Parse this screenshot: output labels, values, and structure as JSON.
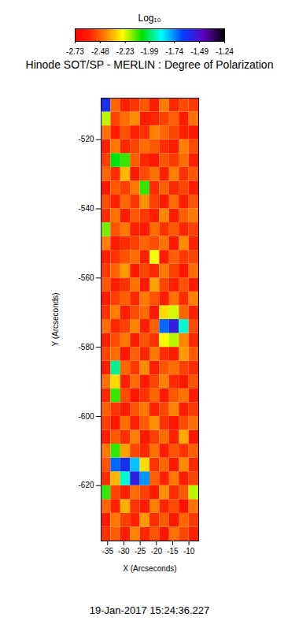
{
  "chart_data": {
    "type": "heatmap",
    "title": "Hinode SOT/SP - MERLIN : Degree of Polarization",
    "xlabel": "X (Arcseconds)",
    "ylabel": "Y (Arcseconds)",
    "caption": "19-Jan-2017 15:24:36.227",
    "xlim": [
      -37,
      -7
    ],
    "ylim": [
      -636,
      -508
    ],
    "xticks": [
      -35,
      -30,
      -25,
      -20,
      -15,
      -10
    ],
    "yticks": [
      -620,
      -600,
      -580,
      -560,
      -540,
      -520
    ],
    "x_edges": [
      -37,
      -34,
      -31,
      -28,
      -25,
      -22,
      -19,
      -16,
      -13,
      -10,
      -7
    ],
    "y_edges": [
      -636,
      -632,
      -628,
      -624,
      -620,
      -616,
      -612,
      -608,
      -604,
      -600,
      -596,
      -592,
      -588,
      -584,
      -580,
      -576,
      -572,
      -568,
      -564,
      -560,
      -556,
      -552,
      -548,
      -544,
      -540,
      -536,
      -532,
      -528,
      -524,
      -520,
      -516,
      -512,
      -508
    ],
    "z": [
      [
        -2.55,
        -2.48,
        -2.6,
        -2.42,
        -2.57,
        -2.5,
        -2.63,
        -2.45,
        -2.52,
        -2.58
      ],
      [
        -2.61,
        -2.44,
        -2.53,
        -2.58,
        -2.39,
        -2.56,
        -2.49,
        -2.62,
        -2.47,
        -2.54
      ],
      [
        -2.47,
        -2.58,
        -2.36,
        -2.55,
        -2.6,
        -2.43,
        -2.57,
        -2.51,
        -2.64,
        -2.45
      ],
      [
        -2.1,
        -2.52,
        -2.59,
        -2.46,
        -2.53,
        -2.61,
        -2.4,
        -2.56,
        -2.49,
        -2.2
      ],
      [
        -2.56,
        -2.35,
        -1.9,
        -1.55,
        -1.75,
        -2.48,
        -2.58,
        -2.44,
        -2.6,
        -2.52
      ],
      [
        -2.5,
        -1.7,
        -1.6,
        -1.8,
        -2.3,
        -2.55,
        -2.47,
        -2.62,
        -2.41,
        -2.57
      ],
      [
        -2.44,
        -2.1,
        -2.38,
        -2.52,
        -2.57,
        -2.45,
        -2.6,
        -2.5,
        -2.55,
        -2.48
      ],
      [
        -2.59,
        -2.49,
        -2.56,
        -2.43,
        -2.61,
        -2.53,
        -2.46,
        -2.58,
        -2.37,
        -2.62
      ],
      [
        -2.53,
        -2.62,
        -2.45,
        -2.59,
        -2.48,
        -2.4,
        -2.55,
        -2.63,
        -2.51,
        -2.46
      ],
      [
        -2.48,
        -2.55,
        -2.6,
        -2.5,
        -2.44,
        -2.58,
        -2.52,
        -2.42,
        -2.59,
        -2.54
      ],
      [
        -2.57,
        -2.1,
        -2.51,
        -2.63,
        -2.55,
        -2.47,
        -2.61,
        -2.49,
        -2.45,
        -2.6
      ],
      [
        -2.45,
        -2.3,
        -2.58,
        -2.46,
        -2.6,
        -2.52,
        -2.43,
        -2.57,
        -2.62,
        -2.5
      ],
      [
        -2.6,
        -1.95,
        -2.47,
        -2.54,
        -2.41,
        -2.59,
        -2.5,
        -2.46,
        -2.53,
        -2.56
      ],
      [
        -2.52,
        -2.46,
        -2.62,
        -2.48,
        -2.57,
        -2.44,
        -2.56,
        -2.61,
        -2.39,
        -2.49
      ],
      [
        -2.58,
        -2.51,
        -2.44,
        -2.6,
        -2.5,
        -2.55,
        -2.25,
        -2.2,
        -2.42,
        -2.57
      ],
      [
        -2.46,
        -2.57,
        -2.53,
        -2.42,
        -2.59,
        -2.48,
        -1.7,
        -1.55,
        -1.9,
        -2.51
      ],
      [
        -2.55,
        -2.43,
        -2.6,
        -2.51,
        -2.46,
        -2.62,
        -2.3,
        -2.22,
        -2.47,
        -2.58
      ],
      [
        -2.61,
        -2.53,
        -2.48,
        -2.57,
        -2.44,
        -2.5,
        -2.59,
        -2.45,
        -2.56,
        -2.43
      ],
      [
        -2.49,
        -2.6,
        -2.55,
        -2.45,
        -2.62,
        -2.38,
        -2.52,
        -2.58,
        -2.5,
        -2.61
      ],
      [
        -2.54,
        -2.47,
        -2.39,
        -2.61,
        -2.52,
        -2.57,
        -2.44,
        -2.53,
        -2.63,
        -2.46
      ],
      [
        -2.59,
        -2.55,
        -2.5,
        -2.46,
        -2.58,
        -2.25,
        -2.6,
        -2.48,
        -2.54,
        -2.52
      ],
      [
        -2.43,
        -2.61,
        -2.56,
        -2.53,
        -2.47,
        -2.51,
        -2.45,
        -2.62,
        -2.41,
        -2.58
      ],
      [
        -2.15,
        -2.5,
        -2.44,
        -2.58,
        -2.6,
        -2.46,
        -2.55,
        -2.49,
        -2.57,
        -2.53
      ],
      [
        -2.56,
        -2.45,
        -2.61,
        -2.49,
        -2.54,
        -2.59,
        -2.42,
        -2.6,
        -2.48,
        -2.44
      ],
      [
        -2.51,
        -2.58,
        -2.47,
        -2.55,
        -2.4,
        -2.53,
        -2.61,
        -2.46,
        -2.59,
        -2.5
      ],
      [
        -2.62,
        -2.49,
        -2.53,
        -2.44,
        -2.1,
        -2.56,
        -2.48,
        -2.57,
        -2.52,
        -2.6
      ],
      [
        -2.47,
        -2.56,
        -2.35,
        -2.6,
        -2.51,
        -2.45,
        -2.58,
        -2.43,
        -2.55,
        -2.49
      ],
      [
        -2.53,
        -2.05,
        -2.1,
        -2.48,
        -2.57,
        -2.62,
        -2.5,
        -2.54,
        -2.46,
        -2.59
      ],
      [
        -2.58,
        -2.44,
        -2.57,
        -2.52,
        -2.46,
        -2.49,
        -2.56,
        -2.61,
        -2.43,
        -2.51
      ],
      [
        -2.45,
        -2.6,
        -2.5,
        -2.59,
        -2.55,
        -2.43,
        -2.47,
        -2.52,
        -2.58,
        -2.62
      ],
      [
        -2.2,
        -2.52,
        -2.46,
        -2.41,
        -2.61,
        -2.57,
        -2.53,
        -2.48,
        -2.6,
        -2.45
      ],
      [
        -1.6,
        -2.47,
        -2.58,
        -2.55,
        -2.49,
        -2.6,
        -2.44,
        -2.57,
        -2.51,
        -2.54
      ]
    ],
    "colorbar": {
      "label": "Log₁₀",
      "range": [
        -2.73,
        -1.24
      ],
      "ticks": [
        -2.73,
        -2.48,
        -2.23,
        -1.99,
        -1.74,
        -1.49,
        -1.24
      ]
    }
  }
}
